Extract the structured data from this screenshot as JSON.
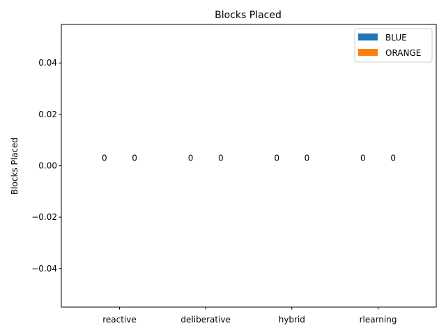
{
  "chart_data": {
    "type": "bar",
    "title": "Blocks Placed",
    "xlabel": "",
    "ylabel": "Blocks Placed",
    "categories": [
      "reactive",
      "deliberative",
      "hybrid",
      "rlearning"
    ],
    "series": [
      {
        "name": "BLUE",
        "values": [
          0,
          0,
          0,
          0
        ],
        "color": "#1f77b4"
      },
      {
        "name": "ORANGE",
        "values": [
          0,
          0,
          0,
          0
        ],
        "color": "#ff7f0e"
      }
    ],
    "ylim": [
      -0.055,
      0.055
    ],
    "yticks": [
      -0.04,
      -0.02,
      0.0,
      0.02,
      0.04
    ],
    "ytick_labels": [
      "−0.04",
      "−0.02",
      "0.00",
      "0.02",
      "0.04"
    ],
    "bar_labels": [
      "0",
      "0",
      "0",
      "0",
      "0",
      "0",
      "0",
      "0"
    ],
    "legend_position": "top-right",
    "grid": false
  }
}
